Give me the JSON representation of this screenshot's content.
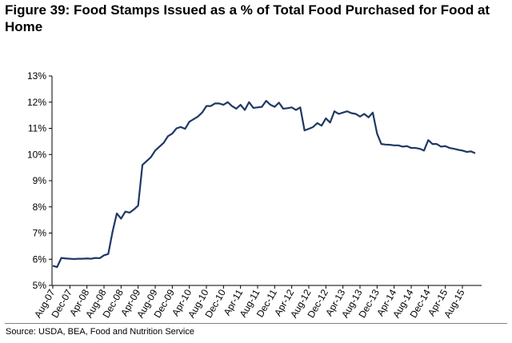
{
  "title": "Figure 39: Food Stamps Issued as a % of Total Food Purchased for Food at Home",
  "source": "Source: USDA, BEA, Food and Nutrition Service",
  "chart_data": {
    "type": "line",
    "title": "Figure 39: Food Stamps Issued as a % of Total Food Purchased for Food at Home",
    "xlabel": "",
    "ylabel": "",
    "ylim": [
      5,
      13
    ],
    "yticks": [
      5,
      6,
      7,
      8,
      9,
      10,
      11,
      12,
      13
    ],
    "ytick_labels": [
      "5%",
      "6%",
      "7%",
      "8%",
      "9%",
      "10%",
      "11%",
      "12%",
      "13%"
    ],
    "xtick_labels": [
      "Aug-07",
      "Dec-07",
      "Apr-08",
      "Aug-08",
      "Dec-08",
      "Apr-09",
      "Aug-09",
      "Dec-09",
      "Apr-10",
      "Aug-10",
      "Dec-10",
      "Apr-11",
      "Aug-11",
      "Dec-11",
      "Apr-12",
      "Aug-12",
      "Dec-12",
      "Apr-13",
      "Aug-13",
      "Dec-13",
      "Apr-14",
      "Aug-14",
      "Dec-14",
      "Apr-15",
      "Aug-15"
    ],
    "grid": false,
    "legend": "none",
    "line_color": "#1F3864",
    "series": [
      {
        "values": [
          5.75,
          5.7,
          6.05,
          6.03,
          6.02,
          6.01,
          6.02,
          6.02,
          6.03,
          6.02,
          6.05,
          6.04,
          6.15,
          6.2,
          7.05,
          7.75,
          7.55,
          7.82,
          7.78,
          7.9,
          8.05,
          9.6,
          9.75,
          9.9,
          10.15,
          10.3,
          10.45,
          10.7,
          10.8,
          11.0,
          11.05,
          10.98,
          11.25,
          11.35,
          11.45,
          11.6,
          11.85,
          11.85,
          11.95,
          11.95,
          11.9,
          12.0,
          11.85,
          11.75,
          11.9,
          11.7,
          12.0,
          11.78,
          11.8,
          11.82,
          12.05,
          11.9,
          11.82,
          11.98,
          11.75,
          11.77,
          11.8,
          11.7,
          11.8,
          10.92,
          10.98,
          11.05,
          11.2,
          11.1,
          11.38,
          11.22,
          11.65,
          11.55,
          11.6,
          11.65,
          11.58,
          11.55,
          11.45,
          11.55,
          11.42,
          11.6,
          10.8,
          10.4,
          10.38,
          10.37,
          10.35,
          10.35,
          10.3,
          10.32,
          10.25,
          10.25,
          10.22,
          10.15,
          10.55,
          10.4,
          10.4,
          10.3,
          10.32,
          10.25,
          10.22,
          10.18,
          10.15,
          10.1,
          10.12,
          10.05
        ]
      }
    ]
  }
}
